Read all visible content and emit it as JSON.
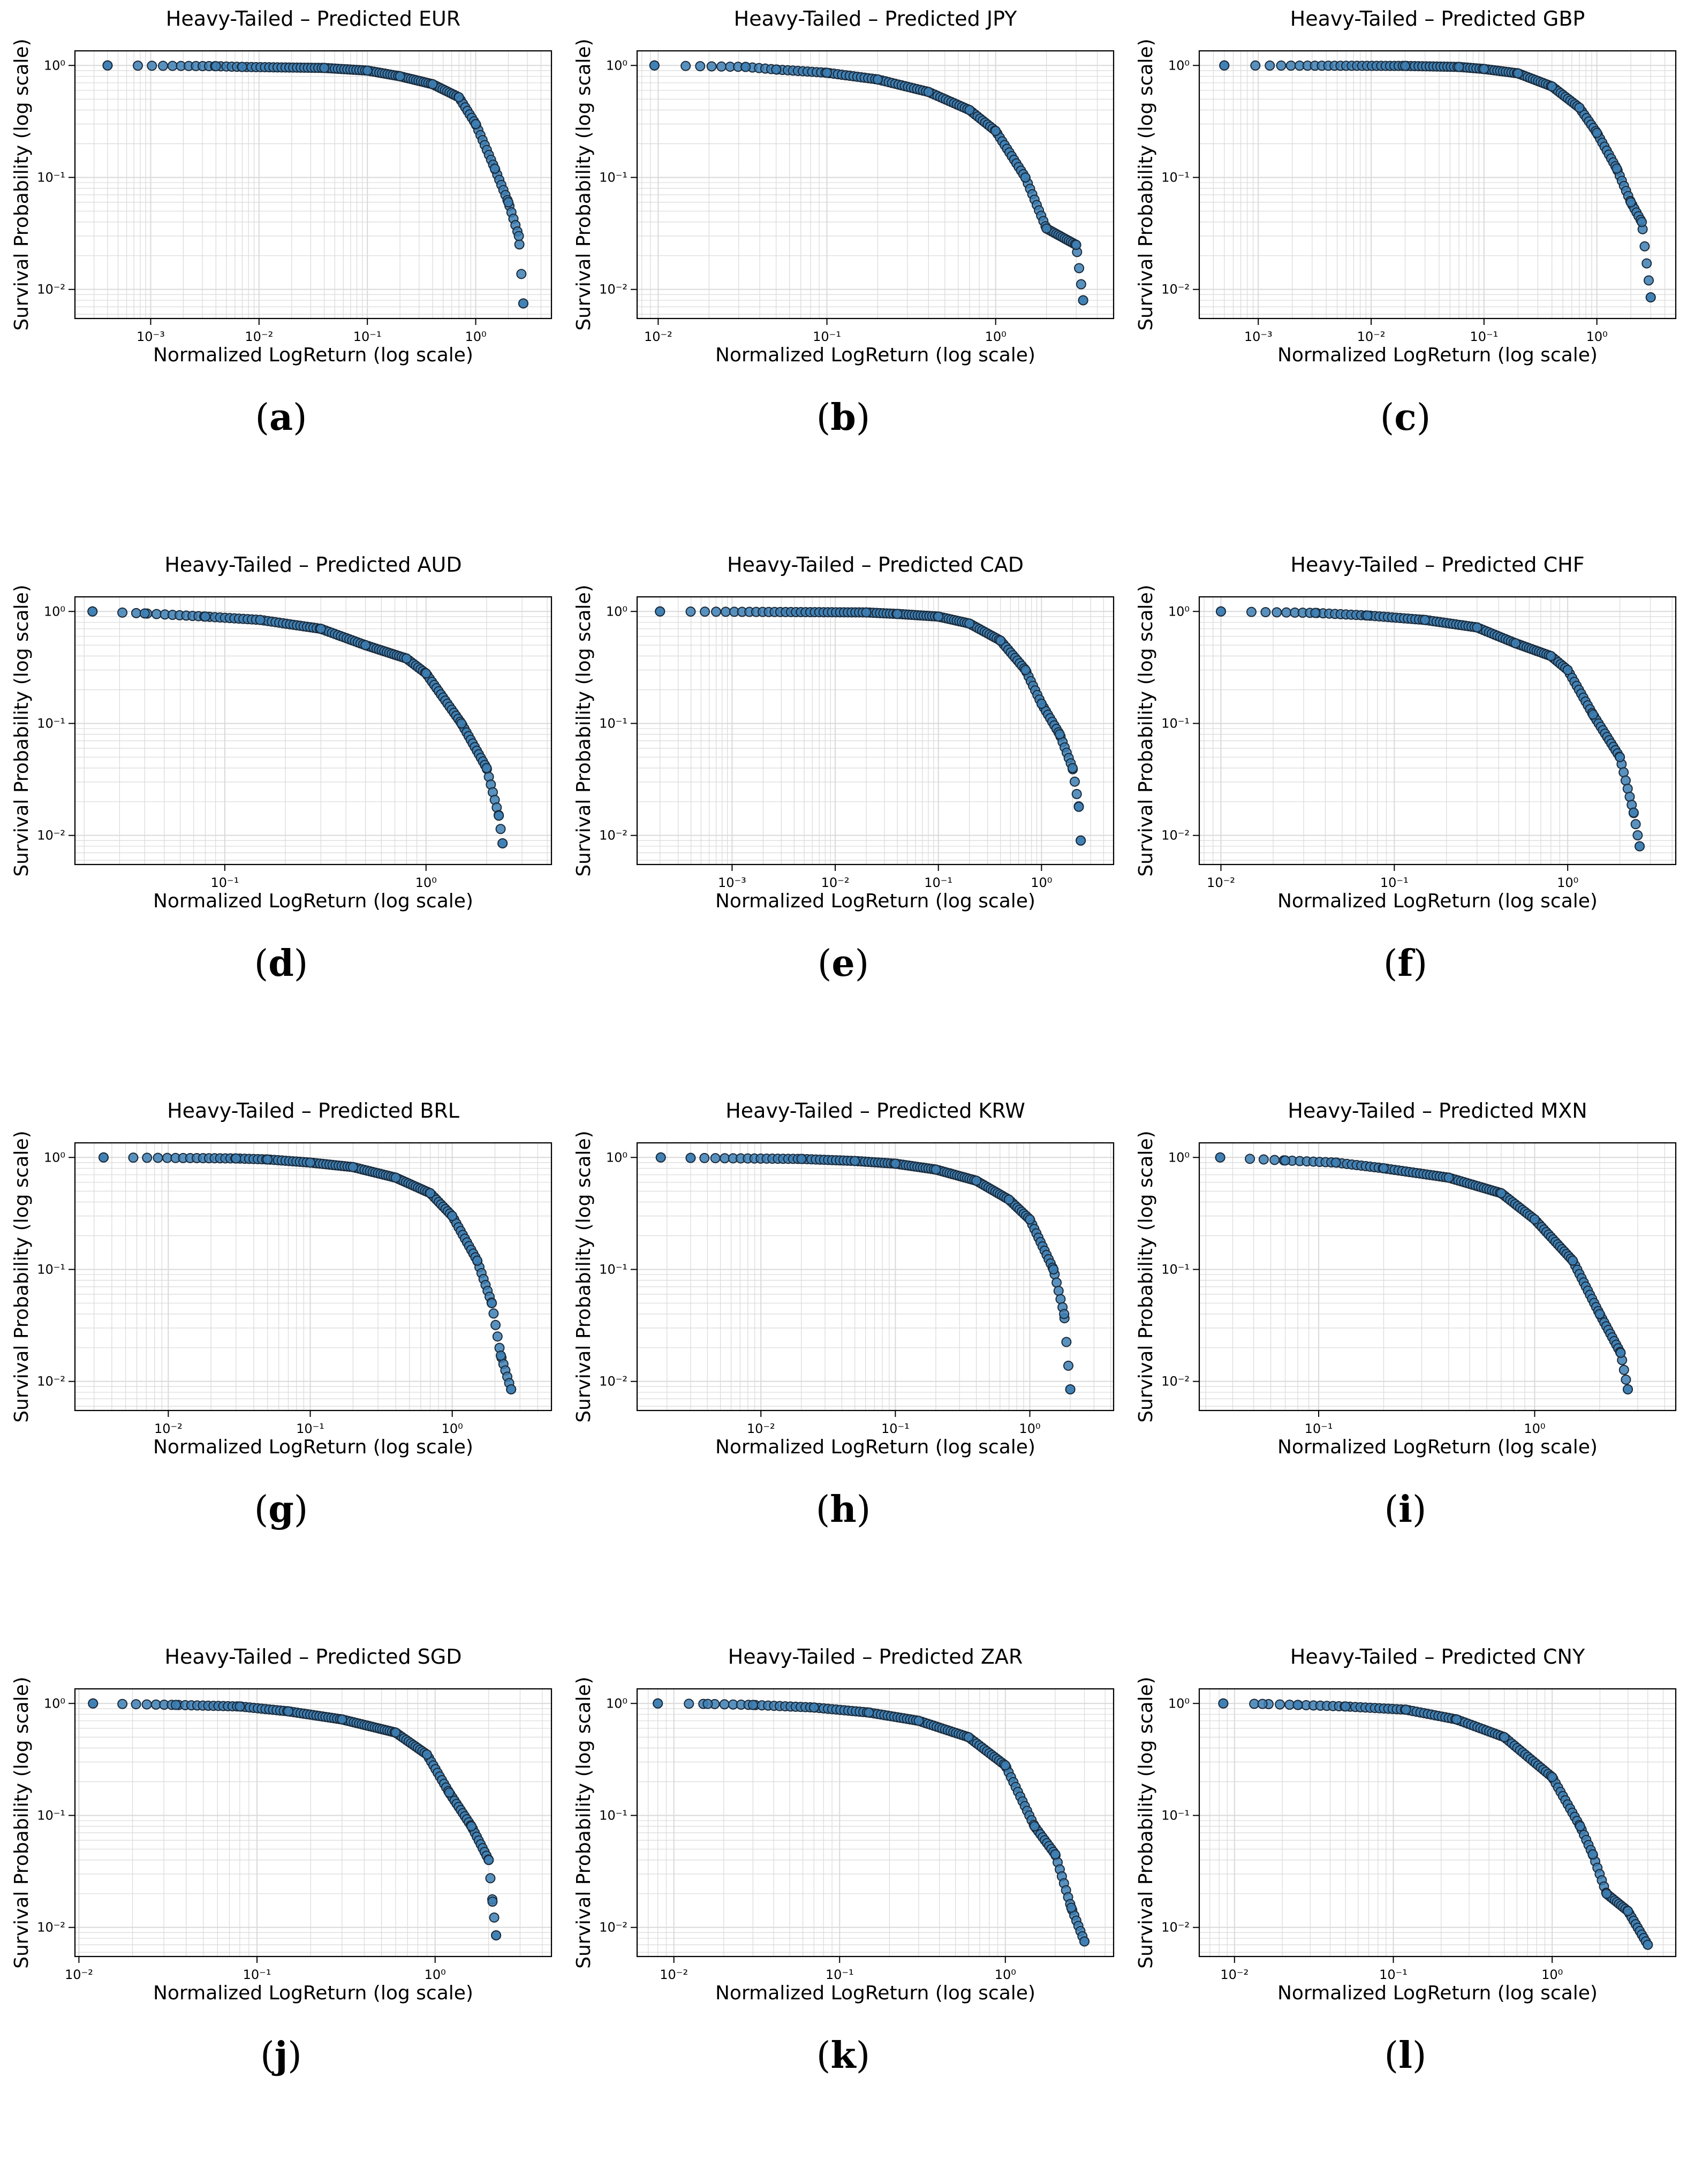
{
  "figure": {
    "panels": [
      {
        "label": "a",
        "title": "Heavy-Tailed – Predicted EUR",
        "xlabel": "Normalized LogReturn (log scale)",
        "ylabel": "Survival Probability (log scale)",
        "chart_data_ref": 0
      },
      {
        "label": "b",
        "title": "Heavy-Tailed – Predicted JPY",
        "xlabel": "Normalized LogReturn (log scale)",
        "ylabel": "Survival Probability (log scale)",
        "chart_data_ref": 1
      },
      {
        "label": "c",
        "title": "Heavy-Tailed – Predicted GBP",
        "xlabel": "Normalized LogReturn (log scale)",
        "ylabel": "Survival Probability (log scale)",
        "chart_data_ref": 2
      },
      {
        "label": "d",
        "title": "Heavy-Tailed – Predicted AUD",
        "xlabel": "Normalized LogReturn (log scale)",
        "ylabel": "Survival Probability (log scale)",
        "chart_data_ref": 3
      },
      {
        "label": "e",
        "title": "Heavy-Tailed – Predicted CAD",
        "xlabel": "Normalized LogReturn (log scale)",
        "ylabel": "Survival Probability (log scale)",
        "chart_data_ref": 4
      },
      {
        "label": "f",
        "title": "Heavy-Tailed – Predicted CHF",
        "xlabel": "Normalized LogReturn (log scale)",
        "ylabel": "Survival Probability (log scale)",
        "chart_data_ref": 5
      },
      {
        "label": "g",
        "title": "Heavy-Tailed – Predicted BRL",
        "xlabel": "Normalized LogReturn (log scale)",
        "ylabel": "Survival Probability (log scale)",
        "chart_data_ref": 6
      },
      {
        "label": "h",
        "title": "Heavy-Tailed – Predicted KRW",
        "xlabel": "Normalized LogReturn (log scale)",
        "ylabel": "Survival Probability (log scale)",
        "chart_data_ref": 7
      },
      {
        "label": "i",
        "title": "Heavy-Tailed – Predicted MXN",
        "xlabel": "Normalized LogReturn (log scale)",
        "ylabel": "Survival Probability (log scale)",
        "chart_data_ref": 8
      },
      {
        "label": "j",
        "title": "Heavy-Tailed – Predicted SGD",
        "xlabel": "Normalized LogReturn (log scale)",
        "ylabel": "Survival Probability (log scale)",
        "chart_data_ref": 9
      },
      {
        "label": "k",
        "title": "Heavy-Tailed – Predicted ZAR",
        "xlabel": "Normalized LogReturn (log scale)",
        "ylabel": "Survival Probability (log scale)",
        "chart_data_ref": 10
      },
      {
        "label": "l",
        "title": "Heavy-Tailed – Predicted CNY",
        "xlabel": "Normalized LogReturn (log scale)",
        "ylabel": "Survival Probability (log scale)",
        "chart_data_ref": 11
      }
    ],
    "marker_color": "#3d7fb4",
    "marker_edge": "#1a2a3a"
  },
  "chart_data": [
    {
      "type": "scatter",
      "title": "Heavy-Tailed – Predicted EUR",
      "xscale": "log",
      "yscale": "log",
      "xlim": [
        0.0002,
        5
      ],
      "ylim": [
        0.0055,
        1.35
      ],
      "xticks": [
        0.001,
        0.01,
        0.1,
        1
      ],
      "xtick_labels": [
        "10⁻³",
        "10⁻²",
        "10⁻¹",
        "10⁰"
      ],
      "yticks": [
        0.01,
        0.1,
        1
      ],
      "ytick_labels": [
        "10⁻²",
        "10⁻¹",
        "10⁰"
      ],
      "anchors": [
        [
          0.0004,
          1.0
        ],
        [
          0.004,
          0.985
        ],
        [
          0.007,
          0.97
        ],
        [
          0.04,
          0.95
        ],
        [
          0.1,
          0.9
        ],
        [
          0.2,
          0.8
        ],
        [
          0.4,
          0.68
        ],
        [
          0.7,
          0.52
        ],
        [
          1.0,
          0.3
        ],
        [
          1.5,
          0.12
        ],
        [
          2.0,
          0.06
        ],
        [
          2.5,
          0.03
        ],
        [
          2.75,
          0.0075
        ]
      ],
      "n_points": 118
    },
    {
      "type": "scatter",
      "title": "Heavy-Tailed – Predicted JPY",
      "xscale": "log",
      "yscale": "log",
      "xlim": [
        0.0075,
        5
      ],
      "ylim": [
        0.0055,
        1.35
      ],
      "xticks": [
        0.01,
        0.1,
        1
      ],
      "xtick_labels": [
        "10⁻²",
        "10⁻¹",
        "10⁰"
      ],
      "yticks": [
        0.01,
        0.1,
        1
      ],
      "ytick_labels": [
        "10⁻²",
        "10⁻¹",
        "10⁰"
      ],
      "anchors": [
        [
          0.0095,
          1.0
        ],
        [
          0.033,
          0.97
        ],
        [
          0.05,
          0.92
        ],
        [
          0.1,
          0.86
        ],
        [
          0.2,
          0.75
        ],
        [
          0.4,
          0.58
        ],
        [
          0.7,
          0.4
        ],
        [
          1.0,
          0.26
        ],
        [
          1.5,
          0.1
        ],
        [
          2.0,
          0.035
        ],
        [
          3.0,
          0.025
        ],
        [
          3.3,
          0.008
        ]
      ],
      "n_points": 118
    },
    {
      "type": "scatter",
      "title": "Heavy-Tailed – Predicted GBP",
      "xscale": "log",
      "yscale": "log",
      "xlim": [
        0.0003,
        5
      ],
      "ylim": [
        0.0055,
        1.35
      ],
      "xticks": [
        0.001,
        0.01,
        0.1,
        1
      ],
      "xtick_labels": [
        "10⁻³",
        "10⁻²",
        "10⁻¹",
        "10⁰"
      ],
      "yticks": [
        0.01,
        0.1,
        1
      ],
      "ytick_labels": [
        "10⁻²",
        "10⁻¹",
        "10⁰"
      ],
      "anchors": [
        [
          0.0005,
          1.0
        ],
        [
          0.02,
          0.99
        ],
        [
          0.06,
          0.97
        ],
        [
          0.1,
          0.93
        ],
        [
          0.2,
          0.85
        ],
        [
          0.4,
          0.65
        ],
        [
          0.7,
          0.42
        ],
        [
          1.0,
          0.25
        ],
        [
          1.5,
          0.12
        ],
        [
          2.0,
          0.06
        ],
        [
          2.5,
          0.04
        ],
        [
          3.0,
          0.0085
        ]
      ],
      "n_points": 118
    },
    {
      "type": "scatter",
      "title": "Heavy-Tailed – Predicted AUD",
      "xscale": "log",
      "yscale": "log",
      "xlim": [
        0.018,
        4.2
      ],
      "ylim": [
        0.0055,
        1.35
      ],
      "xticks": [
        0.1,
        1
      ],
      "xtick_labels": [
        "10⁻¹",
        "10⁰"
      ],
      "yticks": [
        0.01,
        0.1,
        1
      ],
      "ytick_labels": [
        "10⁻²",
        "10⁻¹",
        "10⁰"
      ],
      "anchors": [
        [
          0.022,
          1.0
        ],
        [
          0.04,
          0.96
        ],
        [
          0.08,
          0.9
        ],
        [
          0.15,
          0.84
        ],
        [
          0.3,
          0.7
        ],
        [
          0.5,
          0.5
        ],
        [
          0.8,
          0.38
        ],
        [
          1.0,
          0.28
        ],
        [
          1.5,
          0.1
        ],
        [
          2.0,
          0.04
        ],
        [
          2.3,
          0.015
        ],
        [
          2.4,
          0.0085
        ]
      ],
      "n_points": 118
    },
    {
      "type": "scatter",
      "title": "Heavy-Tailed – Predicted CAD",
      "xscale": "log",
      "yscale": "log",
      "xlim": [
        0.00012,
        5
      ],
      "ylim": [
        0.0055,
        1.35
      ],
      "xticks": [
        0.001,
        0.01,
        0.1,
        1
      ],
      "xtick_labels": [
        "10⁻³",
        "10⁻²",
        "10⁻¹",
        "10⁰"
      ],
      "yticks": [
        0.01,
        0.1,
        1
      ],
      "ytick_labels": [
        "10⁻²",
        "10⁻¹",
        "10⁰"
      ],
      "anchors": [
        [
          0.0002,
          1.0
        ],
        [
          0.02,
          0.98
        ],
        [
          0.04,
          0.95
        ],
        [
          0.1,
          0.9
        ],
        [
          0.2,
          0.78
        ],
        [
          0.4,
          0.55
        ],
        [
          0.7,
          0.3
        ],
        [
          1.0,
          0.15
        ],
        [
          1.5,
          0.08
        ],
        [
          2.0,
          0.04
        ],
        [
          2.3,
          0.018
        ],
        [
          2.4,
          0.009
        ]
      ],
      "n_points": 118
    },
    {
      "type": "scatter",
      "title": "Heavy-Tailed – Predicted CHF",
      "xscale": "log",
      "yscale": "log",
      "xlim": [
        0.0075,
        4.2
      ],
      "ylim": [
        0.0055,
        1.35
      ],
      "xticks": [
        0.01,
        0.1,
        1
      ],
      "xtick_labels": [
        "10⁻²",
        "10⁻¹",
        "10⁰"
      ],
      "yticks": [
        0.01,
        0.1,
        1
      ],
      "ytick_labels": [
        "10⁻²",
        "10⁻¹",
        "10⁰"
      ],
      "anchors": [
        [
          0.01,
          1.0
        ],
        [
          0.035,
          0.97
        ],
        [
          0.07,
          0.92
        ],
        [
          0.15,
          0.84
        ],
        [
          0.3,
          0.72
        ],
        [
          0.5,
          0.52
        ],
        [
          0.8,
          0.4
        ],
        [
          1.0,
          0.3
        ],
        [
          1.4,
          0.12
        ],
        [
          2.0,
          0.05
        ],
        [
          2.4,
          0.016
        ],
        [
          2.6,
          0.008
        ]
      ],
      "n_points": 118
    },
    {
      "type": "scatter",
      "title": "Heavy-Tailed – Predicted BRL",
      "xscale": "log",
      "yscale": "log",
      "xlim": [
        0.0022,
        5
      ],
      "ylim": [
        0.0055,
        1.35
      ],
      "xticks": [
        0.01,
        0.1,
        1
      ],
      "xtick_labels": [
        "10⁻²",
        "10⁻¹",
        "10⁰"
      ],
      "yticks": [
        0.01,
        0.1,
        1
      ],
      "ytick_labels": [
        "10⁻²",
        "10⁻¹",
        "10⁰"
      ],
      "anchors": [
        [
          0.0035,
          1.0
        ],
        [
          0.03,
          0.98
        ],
        [
          0.05,
          0.96
        ],
        [
          0.1,
          0.9
        ],
        [
          0.2,
          0.82
        ],
        [
          0.4,
          0.66
        ],
        [
          0.7,
          0.48
        ],
        [
          1.0,
          0.3
        ],
        [
          1.5,
          0.12
        ],
        [
          1.9,
          0.05
        ],
        [
          2.2,
          0.017
        ],
        [
          2.6,
          0.0085
        ]
      ],
      "n_points": 118
    },
    {
      "type": "scatter",
      "title": "Heavy-Tailed – Predicted KRW",
      "xscale": "log",
      "yscale": "log",
      "xlim": [
        0.0012,
        4.2
      ],
      "ylim": [
        0.0055,
        1.35
      ],
      "xticks": [
        0.01,
        0.1,
        1
      ],
      "xtick_labels": [
        "10⁻²",
        "10⁻¹",
        "10⁰"
      ],
      "yticks": [
        0.01,
        0.1,
        1
      ],
      "ytick_labels": [
        "10⁻²",
        "10⁻¹",
        "10⁰"
      ],
      "anchors": [
        [
          0.0018,
          1.0
        ],
        [
          0.003,
          0.99
        ],
        [
          0.02,
          0.97
        ],
        [
          0.05,
          0.93
        ],
        [
          0.1,
          0.88
        ],
        [
          0.2,
          0.78
        ],
        [
          0.4,
          0.62
        ],
        [
          0.7,
          0.42
        ],
        [
          1.0,
          0.28
        ],
        [
          1.5,
          0.1
        ],
        [
          1.8,
          0.04
        ],
        [
          2.0,
          0.0085
        ]
      ],
      "n_points": 118
    },
    {
      "type": "scatter",
      "title": "Heavy-Tailed – Predicted MXN",
      "xscale": "log",
      "yscale": "log",
      "xlim": [
        0.028,
        4.5
      ],
      "ylim": [
        0.0055,
        1.35
      ],
      "xticks": [
        0.1,
        1
      ],
      "xtick_labels": [
        "10⁻¹",
        "10⁰"
      ],
      "yticks": [
        0.01,
        0.1,
        1
      ],
      "ytick_labels": [
        "10⁻²",
        "10⁻¹",
        "10⁰"
      ],
      "anchors": [
        [
          0.035,
          1.0
        ],
        [
          0.07,
          0.94
        ],
        [
          0.12,
          0.9
        ],
        [
          0.2,
          0.8
        ],
        [
          0.4,
          0.66
        ],
        [
          0.7,
          0.48
        ],
        [
          1.0,
          0.28
        ],
        [
          1.5,
          0.12
        ],
        [
          2.0,
          0.04
        ],
        [
          2.5,
          0.018
        ],
        [
          2.7,
          0.0085
        ]
      ],
      "n_points": 118
    },
    {
      "type": "scatter",
      "title": "Heavy-Tailed – Predicted SGD",
      "xscale": "log",
      "yscale": "log",
      "xlim": [
        0.0095,
        4.5
      ],
      "ylim": [
        0.0055,
        1.35
      ],
      "xticks": [
        0.01,
        0.1,
        1
      ],
      "xtick_labels": [
        "10⁻²",
        "10⁻¹",
        "10⁰"
      ],
      "yticks": [
        0.01,
        0.1,
        1
      ],
      "ytick_labels": [
        "10⁻²",
        "10⁻¹",
        "10⁰"
      ],
      "anchors": [
        [
          0.012,
          1.0
        ],
        [
          0.035,
          0.97
        ],
        [
          0.08,
          0.94
        ],
        [
          0.15,
          0.85
        ],
        [
          0.3,
          0.72
        ],
        [
          0.6,
          0.55
        ],
        [
          0.9,
          0.35
        ],
        [
          1.2,
          0.16
        ],
        [
          1.6,
          0.08
        ],
        [
          2.0,
          0.04
        ],
        [
          2.1,
          0.017
        ],
        [
          2.2,
          0.0085
        ]
      ],
      "n_points": 118
    },
    {
      "type": "scatter",
      "title": "Heavy-Tailed – Predicted ZAR",
      "xscale": "log",
      "yscale": "log",
      "xlim": [
        0.006,
        4.5
      ],
      "ylim": [
        0.0055,
        1.35
      ],
      "xticks": [
        0.01,
        0.1,
        1
      ],
      "xtick_labels": [
        "10⁻²",
        "10⁻¹",
        "10⁰"
      ],
      "yticks": [
        0.01,
        0.1,
        1
      ],
      "ytick_labels": [
        "10⁻²",
        "10⁻¹",
        "10⁰"
      ],
      "anchors": [
        [
          0.008,
          1.0
        ],
        [
          0.016,
          0.99
        ],
        [
          0.03,
          0.97
        ],
        [
          0.07,
          0.92
        ],
        [
          0.15,
          0.83
        ],
        [
          0.3,
          0.7
        ],
        [
          0.6,
          0.5
        ],
        [
          1.0,
          0.28
        ],
        [
          1.5,
          0.08
        ],
        [
          2.0,
          0.045
        ],
        [
          2.5,
          0.015
        ],
        [
          3.0,
          0.0075
        ]
      ],
      "n_points": 118
    },
    {
      "type": "scatter",
      "title": "Heavy-Tailed – Predicted CNY",
      "xscale": "log",
      "yscale": "log",
      "xlim": [
        0.006,
        6
      ],
      "ylim": [
        0.0055,
        1.35
      ],
      "xticks": [
        0.01,
        0.1,
        1
      ],
      "xtick_labels": [
        "10⁻²",
        "10⁻¹",
        "10⁰"
      ],
      "yticks": [
        0.01,
        0.1,
        1
      ],
      "ytick_labels": [
        "10⁻²",
        "10⁻¹",
        "10⁰"
      ],
      "anchors": [
        [
          0.0085,
          1.0
        ],
        [
          0.015,
          0.99
        ],
        [
          0.025,
          0.97
        ],
        [
          0.05,
          0.94
        ],
        [
          0.12,
          0.88
        ],
        [
          0.25,
          0.72
        ],
        [
          0.5,
          0.5
        ],
        [
          1.0,
          0.22
        ],
        [
          1.5,
          0.08
        ],
        [
          1.8,
          0.045
        ],
        [
          2.2,
          0.02
        ],
        [
          3.0,
          0.014
        ],
        [
          4.0,
          0.007
        ]
      ],
      "n_points": 118
    }
  ]
}
